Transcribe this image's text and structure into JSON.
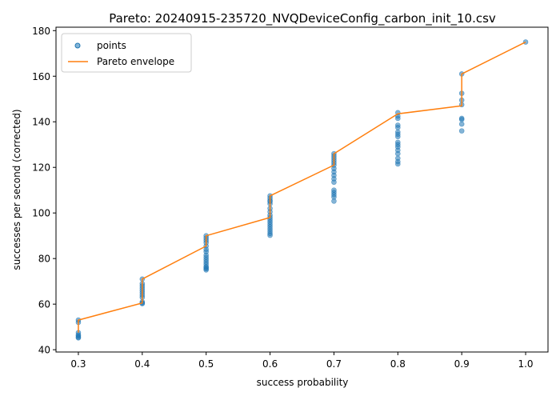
{
  "chart_data": {
    "type": "scatter",
    "title": "Pareto: 20240915-235720_NVQDeviceConfig_carbon_init_10.csv",
    "xlabel": "success probability",
    "ylabel": "successes per second (corrected)",
    "xlim": [
      0.265,
      1.035
    ],
    "ylim": [
      39,
      181.5
    ],
    "x_ticks": [
      0.3,
      0.4,
      0.5,
      0.6,
      0.7,
      0.8,
      0.9,
      1.0
    ],
    "x_tick_labels": [
      "0.3",
      "0.4",
      "0.5",
      "0.6",
      "0.7",
      "0.8",
      "0.9",
      "1.0"
    ],
    "y_ticks": [
      40,
      60,
      80,
      100,
      120,
      140,
      160,
      180
    ],
    "y_tick_labels": [
      "40",
      "60",
      "80",
      "100",
      "120",
      "140",
      "160",
      "180"
    ],
    "grid": false,
    "legend": {
      "position": "top-left",
      "entries": [
        "points",
        "Pareto envelope"
      ]
    },
    "colors": {
      "points": "#1f77b4",
      "envelope": "#ff7f0e"
    },
    "series": [
      {
        "name": "points",
        "style": "markers",
        "points": [
          {
            "x": 0.3,
            "y": 53.0
          },
          {
            "x": 0.3,
            "y": 52.0
          },
          {
            "x": 0.3,
            "y": 47.5
          },
          {
            "x": 0.3,
            "y": 46.5
          },
          {
            "x": 0.3,
            "y": 46.0
          },
          {
            "x": 0.3,
            "y": 45.5
          },
          {
            "x": 0.3,
            "y": 45.2
          },
          {
            "x": 0.4,
            "y": 71.0
          },
          {
            "x": 0.4,
            "y": 69.0
          },
          {
            "x": 0.4,
            "y": 68.0
          },
          {
            "x": 0.4,
            "y": 67.0
          },
          {
            "x": 0.4,
            "y": 66.0
          },
          {
            "x": 0.4,
            "y": 65.0
          },
          {
            "x": 0.4,
            "y": 64.0
          },
          {
            "x": 0.4,
            "y": 63.0
          },
          {
            "x": 0.4,
            "y": 61.0
          },
          {
            "x": 0.4,
            "y": 60.5
          },
          {
            "x": 0.4,
            "y": 60.2
          },
          {
            "x": 0.5,
            "y": 90.0
          },
          {
            "x": 0.5,
            "y": 89.0
          },
          {
            "x": 0.5,
            "y": 88.0
          },
          {
            "x": 0.5,
            "y": 87.0
          },
          {
            "x": 0.5,
            "y": 85.5
          },
          {
            "x": 0.5,
            "y": 84.0
          },
          {
            "x": 0.5,
            "y": 83.0
          },
          {
            "x": 0.5,
            "y": 81.5
          },
          {
            "x": 0.5,
            "y": 80.5
          },
          {
            "x": 0.5,
            "y": 79.5
          },
          {
            "x": 0.5,
            "y": 78.5
          },
          {
            "x": 0.5,
            "y": 77.5
          },
          {
            "x": 0.5,
            "y": 76.5
          },
          {
            "x": 0.5,
            "y": 76.0
          },
          {
            "x": 0.5,
            "y": 75.5
          },
          {
            "x": 0.5,
            "y": 75.0
          },
          {
            "x": 0.6,
            "y": 107.5
          },
          {
            "x": 0.6,
            "y": 106.5
          },
          {
            "x": 0.6,
            "y": 105.5
          },
          {
            "x": 0.6,
            "y": 105.0
          },
          {
            "x": 0.6,
            "y": 104.0
          },
          {
            "x": 0.6,
            "y": 102.0
          },
          {
            "x": 0.6,
            "y": 100.5
          },
          {
            "x": 0.6,
            "y": 99.0
          },
          {
            "x": 0.6,
            "y": 98.0
          },
          {
            "x": 0.6,
            "y": 97.0
          },
          {
            "x": 0.6,
            "y": 96.0
          },
          {
            "x": 0.6,
            "y": 95.0
          },
          {
            "x": 0.6,
            "y": 94.0
          },
          {
            "x": 0.6,
            "y": 93.0
          },
          {
            "x": 0.6,
            "y": 92.0
          },
          {
            "x": 0.6,
            "y": 91.0
          },
          {
            "x": 0.6,
            "y": 90.2
          },
          {
            "x": 0.7,
            "y": 126.0
          },
          {
            "x": 0.7,
            "y": 125.0
          },
          {
            "x": 0.7,
            "y": 124.0
          },
          {
            "x": 0.7,
            "y": 123.0
          },
          {
            "x": 0.7,
            "y": 122.0
          },
          {
            "x": 0.7,
            "y": 121.0
          },
          {
            "x": 0.7,
            "y": 119.5
          },
          {
            "x": 0.7,
            "y": 118.0
          },
          {
            "x": 0.7,
            "y": 116.5
          },
          {
            "x": 0.7,
            "y": 115.0
          },
          {
            "x": 0.7,
            "y": 113.5
          },
          {
            "x": 0.7,
            "y": 110.0
          },
          {
            "x": 0.7,
            "y": 109.0
          },
          {
            "x": 0.7,
            "y": 108.0
          },
          {
            "x": 0.7,
            "y": 107.0
          },
          {
            "x": 0.7,
            "y": 105.2
          },
          {
            "x": 0.8,
            "y": 144.0
          },
          {
            "x": 0.8,
            "y": 142.5
          },
          {
            "x": 0.8,
            "y": 141.5
          },
          {
            "x": 0.8,
            "y": 138.5
          },
          {
            "x": 0.8,
            "y": 137.5
          },
          {
            "x": 0.8,
            "y": 135.5
          },
          {
            "x": 0.8,
            "y": 134.5
          },
          {
            "x": 0.8,
            "y": 133.5
          },
          {
            "x": 0.8,
            "y": 131.0
          },
          {
            "x": 0.8,
            "y": 130.0
          },
          {
            "x": 0.8,
            "y": 129.0
          },
          {
            "x": 0.8,
            "y": 127.5
          },
          {
            "x": 0.8,
            "y": 126.0
          },
          {
            "x": 0.8,
            "y": 124.0
          },
          {
            "x": 0.8,
            "y": 122.5
          },
          {
            "x": 0.8,
            "y": 121.5
          },
          {
            "x": 0.9,
            "y": 161.0
          },
          {
            "x": 0.9,
            "y": 152.5
          },
          {
            "x": 0.9,
            "y": 149.5
          },
          {
            "x": 0.9,
            "y": 147.5
          },
          {
            "x": 0.9,
            "y": 141.5
          },
          {
            "x": 0.9,
            "y": 141.0
          },
          {
            "x": 0.9,
            "y": 139.0
          },
          {
            "x": 0.9,
            "y": 136.0
          },
          {
            "x": 1.0,
            "y": 175.0
          }
        ]
      },
      {
        "name": "Pareto envelope",
        "style": "line",
        "points": [
          {
            "x": 0.3,
            "y": 47.5
          },
          {
            "x": 0.3,
            "y": 53.0
          },
          {
            "x": 0.4,
            "y": 60.5
          },
          {
            "x": 0.4,
            "y": 71.0
          },
          {
            "x": 0.5,
            "y": 85.5
          },
          {
            "x": 0.5,
            "y": 90.0
          },
          {
            "x": 0.6,
            "y": 98.0
          },
          {
            "x": 0.6,
            "y": 107.5
          },
          {
            "x": 0.7,
            "y": 121.0
          },
          {
            "x": 0.7,
            "y": 126.0
          },
          {
            "x": 0.8,
            "y": 143.5
          },
          {
            "x": 0.9,
            "y": 147.0
          },
          {
            "x": 0.9,
            "y": 161.0
          },
          {
            "x": 1.0,
            "y": 175.0
          }
        ]
      }
    ]
  }
}
